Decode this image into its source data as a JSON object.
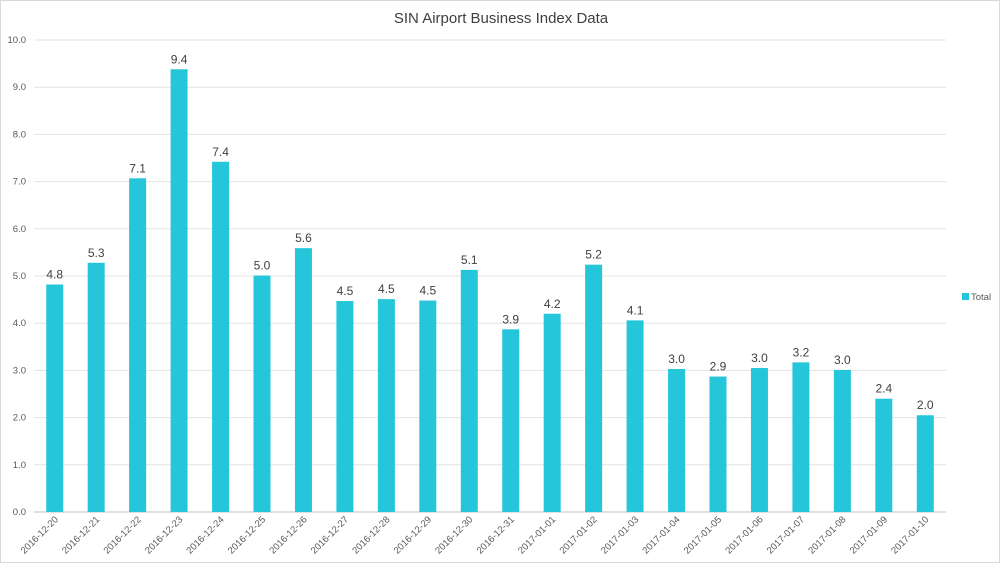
{
  "chart_data": {
    "type": "bar",
    "title": "SIN Airport Business Index Data",
    "xlabel": "",
    "ylabel": "",
    "ylim": [
      0,
      10
    ],
    "yticks": [
      "0.0",
      "1.0",
      "2.0",
      "3.0",
      "4.0",
      "5.0",
      "6.0",
      "7.0",
      "8.0",
      "9.0",
      "10.0"
    ],
    "grid": true,
    "legend_position": "right",
    "categories": [
      "2016-12-20",
      "2016-12-21",
      "2016-12-22",
      "2016-12-23",
      "2016-12-24",
      "2016-12-25",
      "2016-12-26",
      "2016-12-27",
      "2016-12-28",
      "2016-12-29",
      "2016-12-30",
      "2016-12-31",
      "2017-01-01",
      "2017-01-02",
      "2017-01-03",
      "2017-01-04",
      "2017-01-05",
      "2017-01-06",
      "2017-01-07",
      "2017-01-08",
      "2017-01-09",
      "2017-01-10"
    ],
    "series": [
      {
        "name": "Total",
        "color": "#26c6da",
        "values": [
          4.82,
          5.28,
          7.07,
          9.38,
          7.42,
          5.01,
          5.59,
          4.47,
          4.51,
          4.48,
          5.13,
          3.87,
          4.2,
          5.24,
          4.06,
          3.03,
          2.87,
          3.05,
          3.17,
          3.01,
          2.4,
          2.05
        ],
        "labels": [
          "4.8",
          "5.3",
          "7.1",
          "9.4",
          "7.4",
          "5.0",
          "5.6",
          "4.5",
          "4.5",
          "4.5",
          "5.1",
          "3.9",
          "4.2",
          "5.2",
          "4.1",
          "3.0",
          "2.9",
          "3.0",
          "3.2",
          "3.0",
          "2.4",
          "2.0"
        ]
      }
    ]
  }
}
